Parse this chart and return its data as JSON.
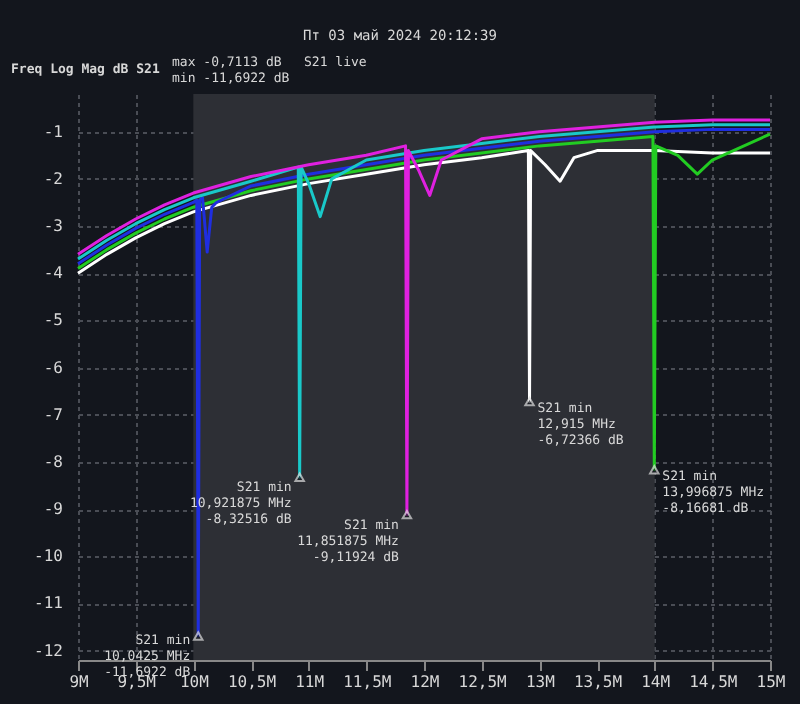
{
  "chart_data": {
    "type": "line",
    "title": "Пт 03 май 2024 20:12:39",
    "ylabel": "Freq Log Mag dB S21",
    "xlim": [
      9,
      15
    ],
    "ylim": [
      -12.2,
      -0.2
    ],
    "xticks": [
      {
        "value": 9,
        "label": "9M"
      },
      {
        "value": 9.5,
        "label": "9,5M"
      },
      {
        "value": 10,
        "label": "10M"
      },
      {
        "value": 10.5,
        "label": "10,5M"
      },
      {
        "value": 11,
        "label": "11M"
      },
      {
        "value": 11.5,
        "label": "11,5M"
      },
      {
        "value": 12,
        "label": "12M"
      },
      {
        "value": 12.5,
        "label": "12,5M"
      },
      {
        "value": 13,
        "label": "13M"
      },
      {
        "value": 13.5,
        "label": "13,5M"
      },
      {
        "value": 14,
        "label": "14M"
      },
      {
        "value": 14.5,
        "label": "14,5M"
      },
      {
        "value": 15,
        "label": "15M"
      }
    ],
    "yticks": [
      -1,
      -2,
      -3,
      -4,
      -5,
      -6,
      -7,
      -8,
      -9,
      -10,
      -11,
      -12
    ],
    "grid": true,
    "bands": [
      {
        "axis": "x",
        "from": 10,
        "to": 14,
        "color": "#2d2f35"
      }
    ],
    "series": [
      {
        "color": "#ffffff",
        "x": [
          9,
          9.25,
          9.5,
          9.75,
          10,
          10.5,
          11,
          11.5,
          12,
          12.5,
          12.905,
          12.915,
          12.925,
          13.05,
          13.18,
          13.3,
          13.5,
          14,
          14.5,
          15
        ],
        "values": [
          -4.0,
          -3.6,
          -3.25,
          -2.95,
          -2.7,
          -2.35,
          -2.1,
          -1.9,
          -1.7,
          -1.55,
          -1.4,
          -6.72366,
          -1.4,
          -1.7,
          -2.05,
          -1.55,
          -1.4,
          -1.4,
          -1.45,
          -1.45
        ]
      },
      {
        "color": "#22cc22",
        "x": [
          9,
          9.25,
          9.5,
          9.75,
          10,
          10.5,
          11,
          11.5,
          12,
          12.5,
          13,
          13.5,
          13.985,
          13.996875,
          14.01,
          14.2,
          14.37,
          14.5,
          15
        ],
        "values": [
          -3.9,
          -3.5,
          -3.15,
          -2.85,
          -2.6,
          -2.25,
          -2.0,
          -1.8,
          -1.6,
          -1.45,
          -1.3,
          -1.2,
          -1.1,
          -8.16681,
          -1.3,
          -1.5,
          -1.9,
          -1.6,
          -1.05
        ]
      },
      {
        "color": "#1f2ee0",
        "x": [
          9,
          9.25,
          9.5,
          9.75,
          10,
          10.03,
          10.0425,
          10.055,
          10.08,
          10.12,
          10.16,
          10.2,
          10.5,
          11,
          11.5,
          12,
          12.5,
          13,
          13.5,
          14,
          14.5,
          15
        ],
        "values": [
          -3.8,
          -3.4,
          -3.05,
          -2.75,
          -2.5,
          -2.45,
          -11.6922,
          -2.45,
          -2.4,
          -3.55,
          -2.6,
          -2.5,
          -2.15,
          -1.9,
          -1.7,
          -1.5,
          -1.35,
          -1.2,
          -1.1,
          -1.0,
          -0.95,
          -0.95
        ]
      },
      {
        "color": "#19c9c9",
        "x": [
          9,
          9.25,
          9.5,
          9.75,
          10,
          10.5,
          10.91,
          10.921875,
          10.935,
          11.0,
          11.1,
          11.2,
          11.5,
          12,
          12.5,
          13,
          13.5,
          14,
          14.5,
          15
        ],
        "values": [
          -3.7,
          -3.3,
          -2.95,
          -2.65,
          -2.4,
          -2.05,
          -1.75,
          -8.32516,
          -1.75,
          -2.1,
          -2.8,
          -2.0,
          -1.6,
          -1.4,
          -1.25,
          -1.1,
          -1.0,
          -0.9,
          -0.85,
          -0.85
        ]
      },
      {
        "color": "#e020e0",
        "x": [
          9,
          9.25,
          9.5,
          9.75,
          10,
          10.5,
          11,
          11.5,
          11.84,
          11.851875,
          11.865,
          11.95,
          12.05,
          12.15,
          12.5,
          13,
          13.5,
          14,
          14.5,
          15
        ],
        "values": [
          -3.6,
          -3.2,
          -2.85,
          -2.55,
          -2.3,
          -1.95,
          -1.7,
          -1.5,
          -1.3,
          -9.11924,
          -1.4,
          -1.8,
          -2.35,
          -1.6,
          -1.15,
          -1.0,
          -0.9,
          -0.8,
          -0.75,
          -0.75
        ]
      }
    ],
    "annotations": [
      "max -0,7113 dB",
      "min -11,6922 dB",
      "S21 live",
      {
        "text": "S21 min\n10,0425 MHz\n-11,6922 dB",
        "x": 10.0425,
        "y": -11.6922
      },
      {
        "text": "S21 min\n10,921875 MHz\n-8,32516 dB",
        "x": 10.921875,
        "y": -8.32516
      },
      {
        "text": "S21 min\n11,851875 MHz\n-9,11924 dB",
        "x": 11.851875,
        "y": -9.11924
      },
      {
        "text": "S21 min\n12,915 MHz\n-6,72366 dB",
        "x": 12.915,
        "y": -6.72366
      },
      {
        "text": "S21 min\n13,996875 MHz\n-8,16681 dB",
        "x": 13.996875,
        "y": -8.16681
      }
    ]
  }
}
